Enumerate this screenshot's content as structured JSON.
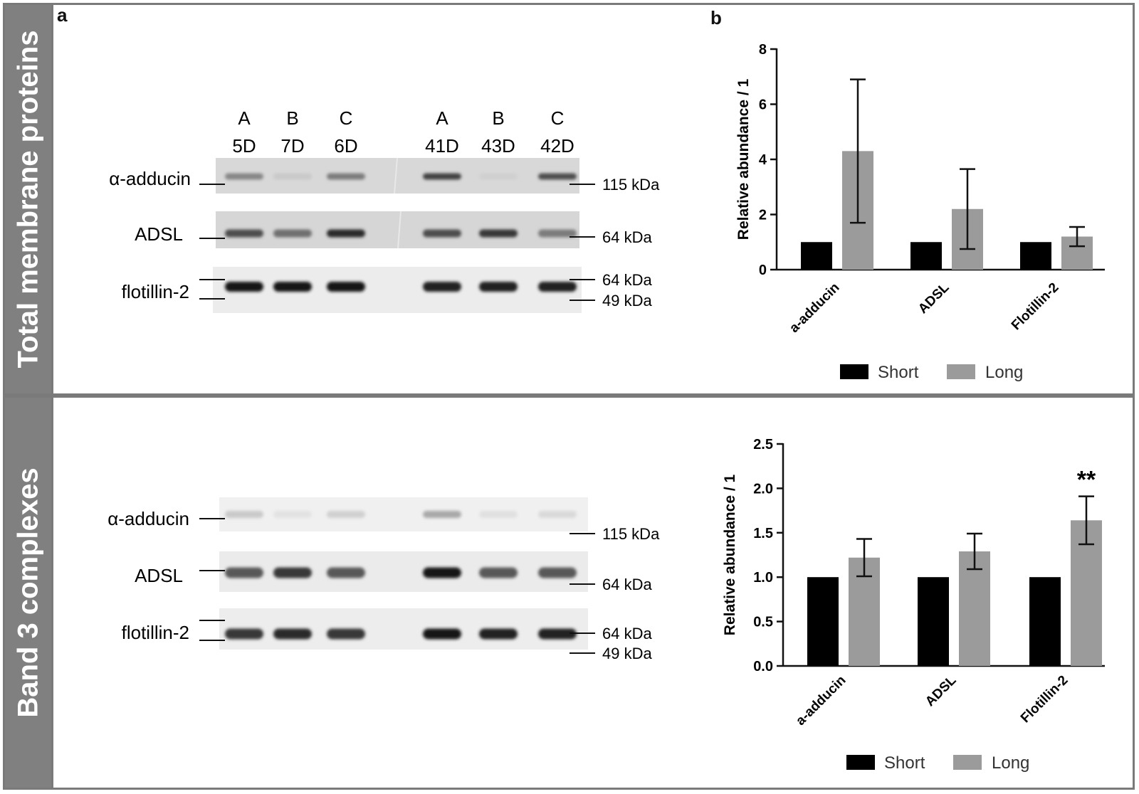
{
  "panel_labels": {
    "a": "a",
    "b": "b"
  },
  "sections": [
    {
      "side_label": "Total membrane proteins"
    },
    {
      "side_label": "Band 3 complexes"
    }
  ],
  "lanes": [
    {
      "letter": "A",
      "sample": "5D"
    },
    {
      "letter": "B",
      "sample": "7D"
    },
    {
      "letter": "C",
      "sample": "6D"
    },
    {
      "letter": "A",
      "sample": "41D"
    },
    {
      "letter": "B",
      "sample": "43D"
    },
    {
      "letter": "C",
      "sample": "42D"
    }
  ],
  "blot_rows": [
    {
      "protein": "α-adducin",
      "markers": [
        "115 kDa"
      ]
    },
    {
      "protein": "ADSL",
      "markers": [
        "64 kDa"
      ]
    },
    {
      "protein": "flotillin-2",
      "markers": [
        "64 kDa",
        "49 kDa"
      ]
    }
  ],
  "band_intensity": {
    "top": [
      [
        0.45,
        0.15,
        0.5,
        0.75,
        0.12,
        0.7
      ],
      [
        0.7,
        0.55,
        0.85,
        0.7,
        0.8,
        0.5
      ],
      [
        0.95,
        0.95,
        0.95,
        0.9,
        0.9,
        0.9
      ]
    ],
    "bottom": [
      [
        0.15,
        0.04,
        0.12,
        0.3,
        0.05,
        0.08
      ],
      [
        0.65,
        0.8,
        0.65,
        0.95,
        0.65,
        0.65
      ],
      [
        0.8,
        0.85,
        0.8,
        0.95,
        0.9,
        0.9
      ]
    ]
  },
  "colors": {
    "short": "#000000",
    "long": "#9b9b9b",
    "frame": "#7a7a7a",
    "side_bar": "#808080"
  },
  "chart_data": [
    {
      "type": "bar",
      "categories": [
        "a-adducin",
        "ADSL",
        "Flotillin-2"
      ],
      "series": [
        {
          "name": "Short",
          "values": [
            1.0,
            1.0,
            1.0
          ]
        },
        {
          "name": "Long",
          "values": [
            4.3,
            2.2,
            1.2
          ],
          "error": [
            2.6,
            1.45,
            0.35
          ]
        }
      ],
      "ylabel": "Relative abundance / 1",
      "ylim": [
        0,
        8
      ],
      "yticks": [
        "0",
        "2",
        "4",
        "6",
        "8"
      ],
      "annotations": [],
      "legend": "bottom"
    },
    {
      "type": "bar",
      "categories": [
        "a-adducin",
        "ADSL",
        "Flotillin-2"
      ],
      "series": [
        {
          "name": "Short",
          "values": [
            1.0,
            1.0,
            1.0
          ]
        },
        {
          "name": "Long",
          "values": [
            1.22,
            1.29,
            1.64
          ],
          "error": [
            0.21,
            0.2,
            0.27
          ]
        }
      ],
      "ylabel": "Relative abundance / 1",
      "ylim": [
        0,
        2.5
      ],
      "yticks": [
        "0.0",
        "0.5",
        "1.0",
        "1.5",
        "2.0",
        "2.5"
      ],
      "annotations": [
        {
          "category": "Flotillin-2",
          "text": "**"
        }
      ],
      "legend": "bottom"
    }
  ]
}
